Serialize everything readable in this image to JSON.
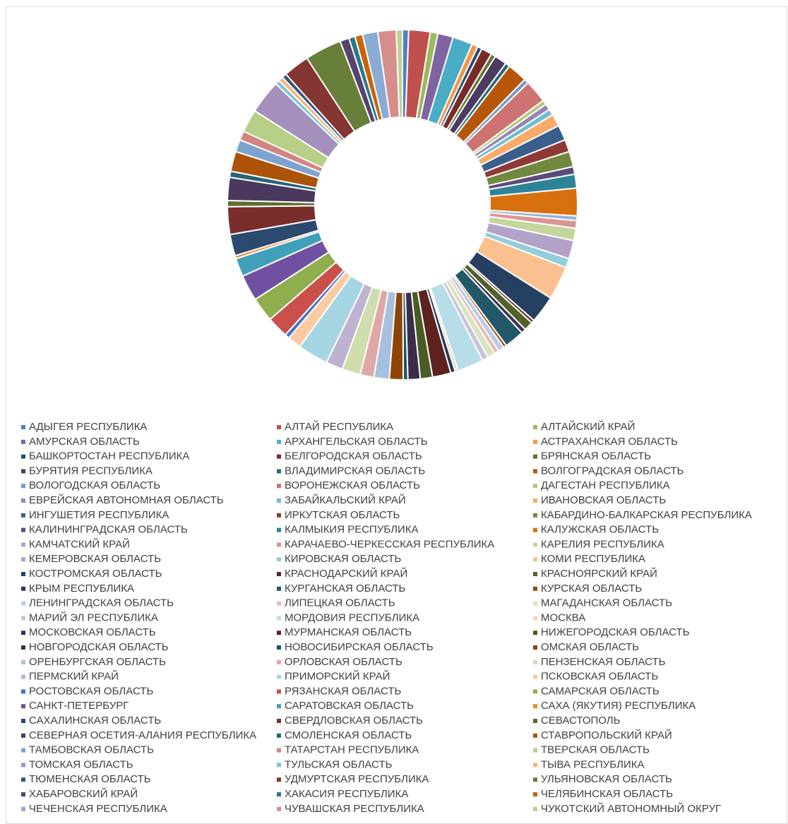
{
  "chart_data": {
    "type": "donut",
    "categories": [
      "АДЫГЕЯ РЕСПУБЛИКА",
      "АЛТАЙ РЕСПУБЛИКА",
      "АЛТАЙСКИЙ КРАЙ",
      "АМУРСКАЯ ОБЛАСТЬ",
      "АРХАНГЕЛЬСКАЯ ОБЛАСТЬ",
      "АСТРАХАНСКАЯ ОБЛАСТЬ",
      "БАШКОРТОСТАН РЕСПУБЛИКА",
      "БЕЛГОРОДСКАЯ ОБЛАСТЬ",
      "БРЯНСКАЯ ОБЛАСТЬ",
      "БУРЯТИЯ РЕСПУБЛИКА",
      "ВЛАДИМИРСКАЯ ОБЛАСТЬ",
      "ВОЛГОГРАДСКАЯ ОБЛАСТЬ",
      "ВОЛОГОДСКАЯ ОБЛАСТЬ",
      "ВОРОНЕЖСКАЯ ОБЛАСТЬ",
      "ДАГЕСТАН РЕСПУБЛИКА",
      "ЕВРЕЙСКАЯ АВТОНОМНАЯ ОБЛАСТЬ",
      "ЗАБАЙКАЛЬСКИЙ КРАЙ",
      "ИВАНОВСКАЯ ОБЛАСТЬ",
      "ИНГУШЕТИЯ РЕСПУБЛИКА",
      "ИРКУТСКАЯ ОБЛАСТЬ",
      "КАБАРДИНО-БАЛКАРСКАЯ РЕСПУБЛИКА",
      "КАЛИНИНГРАДСКАЯ ОБЛАСТЬ",
      "КАЛМЫКИЯ РЕСПУБЛИКА",
      "КАЛУЖСКАЯ ОБЛАСТЬ",
      "КАМЧАТСКИЙ КРАЙ",
      "КАРАЧАЕВО-ЧЕРКЕССКАЯ РЕСПУБЛИКА",
      "КАРЕЛИЯ РЕСПУБЛИКА",
      "КЕМЕРОВСКАЯ ОБЛАСТЬ",
      "КИРОВСКАЯ ОБЛАСТЬ",
      "КОМИ РЕСПУБЛИКА",
      "КОСТРОМСКАЯ ОБЛАСТЬ",
      "КРАСНОДАРСКИЙ КРАЙ",
      "КРАСНОЯРСКИЙ КРАЙ",
      "КРЫМ РЕСПУБЛИКА",
      "КУРГАНСКАЯ ОБЛАСТЬ",
      "КУРСКАЯ ОБЛАСТЬ",
      "ЛЕНИНГРАДСКАЯ ОБЛАСТЬ",
      "ЛИПЕЦКАЯ ОБЛАСТЬ",
      "МАГАДАНСКАЯ ОБЛАСТЬ",
      "МАРИЙ ЭЛ РЕСПУБЛИКА",
      "МОРДОВИЯ РЕСПУБЛИКА",
      "МОСКВА",
      "МОСКОВСКАЯ ОБЛАСТЬ",
      "МУРМАНСКАЯ ОБЛАСТЬ",
      "НИЖЕГОРОДСКАЯ ОБЛАСТЬ",
      "НОВГОРОДСКАЯ ОБЛАСТЬ",
      "НОВОСИБИРСКАЯ ОБЛАСТЬ",
      "ОМСКАЯ ОБЛАСТЬ",
      "ОРЕНБУРГСКАЯ ОБЛАСТЬ",
      "ОРЛОВСКАЯ ОБЛАСТЬ",
      "ПЕНЗЕНСКАЯ ОБЛАСТЬ",
      "ПЕРМСКИЙ КРАЙ",
      "ПРИМОРСКИЙ КРАЙ",
      "ПСКОВСКАЯ ОБЛАСТЬ",
      "РОСТОВСКАЯ ОБЛАСТЬ",
      "РЯЗАНСКАЯ ОБЛАСТЬ",
      "САМАРСКАЯ ОБЛАСТЬ",
      "САНКТ-ПЕТЕРБУРГ",
      "САРАТОВСКАЯ ОБЛАСТЬ",
      "САХА (ЯКУТИЯ) РЕСПУБЛИКА",
      "САХАЛИНСКАЯ ОБЛАСТЬ",
      "СВЕРДЛОВСКАЯ ОБЛАСТЬ",
      "СЕВАСТОПОЛЬ",
      "СЕВЕРНАЯ ОСЕТИЯ-АЛАНИЯ РЕСПУБЛИКА",
      "СМОЛЕНСКАЯ ОБЛАСТЬ",
      "СТАВРОПОЛЬСКИЙ КРАЙ",
      "ТАМБОВСКАЯ ОБЛАСТЬ",
      "ТАТАРСТАН РЕСПУБЛИКА",
      "ТВЕРСКАЯ ОБЛАСТЬ",
      "ТОМСКАЯ ОБЛАСТЬ",
      "ТУЛЬСКАЯ ОБЛАСТЬ",
      "ТЫВА РЕСПУБЛИКА",
      "ТЮМЕНСКАЯ ОБЛАСТЬ",
      "УДМУРТСКАЯ РЕСПУБЛИКА",
      "УЛЬЯНОВСКАЯ ОБЛАСТЬ",
      "ХАБАРОВСКИЙ КРАЙ",
      "ХАКАСИЯ РЕСПУБЛИКА",
      "ЧЕЛЯБИНСКАЯ ОБЛАСТЬ",
      "ЧЕЧЕНСКАЯ РЕСПУБЛИКА",
      "ЧУВАШСКАЯ РЕСПУБЛИКА",
      "ЧУКОТСКИЙ АВТОНОМНЫЙ ОКРУГ"
    ],
    "values": [
      0.4,
      1.4,
      0.5,
      1.0,
      1.3,
      0.4,
      0.3,
      0.7,
      0.3,
      0.8,
      0.3,
      1.3,
      0.3,
      1.5,
      0.3,
      0.4,
      0.4,
      0.8,
      1.0,
      0.8,
      1.0,
      0.5,
      0.9,
      1.8,
      0.3,
      0.5,
      0.8,
      1.2,
      0.6,
      2.2,
      1.8,
      0.2,
      0.6,
      0.3,
      1.3,
      0.2,
      0.4,
      0.3,
      0.5,
      0.4,
      1.7,
      0.2,
      0.3,
      1.2,
      0.8,
      0.8,
      0.3,
      0.9,
      1.0,
      0.9,
      1.2,
      1.1,
      2.0,
      0.9,
      0.3,
      1.4,
      1.6,
      1.7,
      1.2,
      0.2,
      1.4,
      1.8,
      0.4,
      1.5,
      0.4,
      1.3,
      0.8,
      0.6,
      1.5,
      2.2,
      0.3,
      0.3,
      0.3,
      1.7,
      2.4,
      0.6,
      0.4,
      0.5,
      1.0,
      1.2,
      0.4
    ],
    "colors": [
      "#4F81BD",
      "#C0504D",
      "#9BBB59",
      "#8064A2",
      "#4BACC6",
      "#F79646",
      "#2C4D75",
      "#772C2A",
      "#5F7530",
      "#4D3B62",
      "#276A7C",
      "#B65708",
      "#729ACA",
      "#CD7371",
      "#AFC97A",
      "#9983B5",
      "#6FBDD1",
      "#F9AB6B",
      "#3A5F8B",
      "#8E3B38",
      "#71893F",
      "#5E4A7A",
      "#2F8399",
      "#D9700F",
      "#95B3D7",
      "#D99694",
      "#C3D69B",
      "#B3A2C7",
      "#93CDDD",
      "#FAC090",
      "#254061",
      "#632523",
      "#4F6228",
      "#3F3151",
      "#215968",
      "#984807",
      "#B9CDE5",
      "#E6B9B8",
      "#D7E4BD",
      "#CCC1DA",
      "#B7DEE8",
      "#FCD5B5",
      "#1F3A5E",
      "#5E2220",
      "#4A5C26",
      "#3B2E4C",
      "#1F5462",
      "#8F4407",
      "#A6C0DE",
      "#DFA8A6",
      "#CDDDAC",
      "#BFB1D0",
      "#A5D5E2",
      "#FBCAA2",
      "#4472C4",
      "#C9504B",
      "#8FAE4E",
      "#7050A0",
      "#40A0BA",
      "#F08A30",
      "#2B4A70",
      "#7A2E2B",
      "#5A6E2E",
      "#4A385E",
      "#256576",
      "#AD5307",
      "#7EA3CF",
      "#D28483",
      "#B7CF87",
      "#A48FBD",
      "#7EC4D6",
      "#F9B37A",
      "#335580",
      "#853532",
      "#687F39",
      "#56446F",
      "#2B788C",
      "#C7640C",
      "#8AACD4",
      "#D68E8C",
      "#BCD293"
    ]
  }
}
